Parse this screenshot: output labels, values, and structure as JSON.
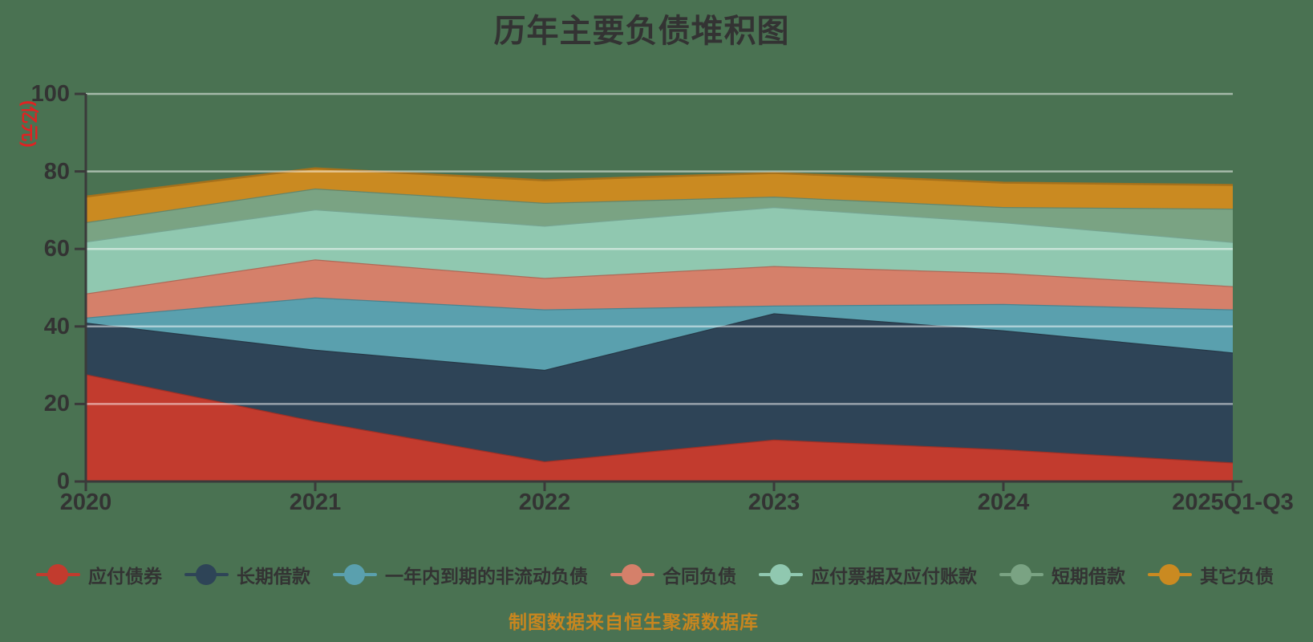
{
  "chart_data": {
    "type": "area",
    "stacked": true,
    "title": "历年主要负债堆积图",
    "ylabel": "(亿元)",
    "xlabel": "",
    "categories": [
      "2020",
      "2021",
      "2022",
      "2023",
      "2024",
      "2025Q1-Q3"
    ],
    "series": [
      {
        "name": "应付债券",
        "color": "#c23b2e",
        "values": [
          27.7,
          15.6,
          5.2,
          10.8,
          8.3,
          4.9
        ]
      },
      {
        "name": "长期借款",
        "color": "#2e4457",
        "values": [
          13.3,
          18.4,
          23.6,
          32.6,
          30.7,
          28.4
        ]
      },
      {
        "name": "一年内到期的非流动负债",
        "color": "#5aa0ae",
        "values": [
          1.3,
          13.5,
          15.6,
          2.0,
          6.8,
          11.1
        ]
      },
      {
        "name": "合同负债",
        "color": "#d5806a",
        "values": [
          6.2,
          9.8,
          8.1,
          10.2,
          8.0,
          6.0
        ]
      },
      {
        "name": "应付票据及应付账款",
        "color": "#90c8b0",
        "values": [
          13.4,
          12.9,
          13.5,
          15.2,
          13.1,
          11.4
        ]
      },
      {
        "name": "短期借款",
        "color": "#7aa383",
        "values": [
          5.0,
          5.4,
          5.9,
          2.7,
          3.9,
          8.6
        ]
      },
      {
        "name": "其它负债",
        "color": "#ca8a21",
        "values": [
          6.6,
          5.2,
          5.8,
          6.1,
          6.3,
          6.1
        ]
      }
    ],
    "cumulative_totals": [
      73.5,
      80.8,
      77.7,
      79.6,
      77.1,
      76.5
    ],
    "yticks": [
      0,
      20,
      40,
      60,
      80,
      100
    ],
    "ylim": [
      0,
      100
    ],
    "grid": true,
    "legend_position": "bottom"
  },
  "footer": {
    "caption": "制图数据来自恒生聚源数据库"
  },
  "style": {
    "background": "#4a7252",
    "axis_color": "#3a3a3a",
    "tick_label_color": "#333333",
    "title_color": "#333333",
    "ylabel_color": "#e02222",
    "caption_color": "#c8861f",
    "gridline_color": "rgba(255,255,255,0.5)"
  }
}
